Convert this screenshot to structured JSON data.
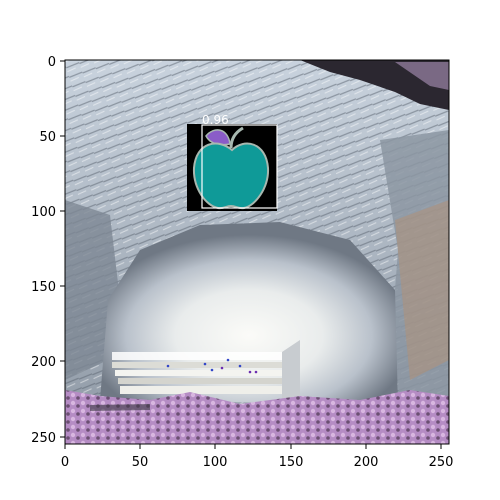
{
  "figure": {
    "x_ticks": [
      "0",
      "50",
      "100",
      "150",
      "200",
      "250"
    ],
    "y_ticks": [
      "0",
      "50",
      "100",
      "150",
      "200",
      "250"
    ]
  },
  "detection": {
    "label": "0.96",
    "score": 0.96,
    "box_color": "#ffffff",
    "icon": "apple-icon"
  },
  "colors": {
    "apple_body": "#0f9a98",
    "apple_leaf": "#8a5cc8",
    "icon_background": "#000000",
    "rock_light": "#e6eef6",
    "rock_shadow": "#707a86",
    "plaza_white": "#f2f2ee",
    "foliage_pink": "#c69ad0"
  }
}
